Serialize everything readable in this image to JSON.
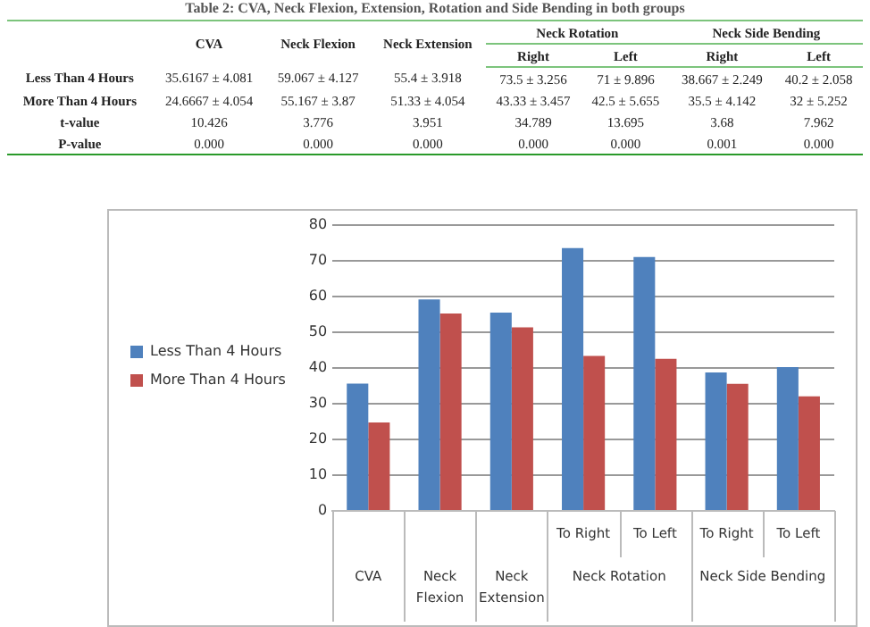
{
  "chart_data": [
    {
      "type": "other",
      "title": "Table 2: CVA, Neck Flexion, Extension, Rotation and Side Bending in both groups",
      "annotations": [
        "CVA",
        "Neck Flexion",
        "Neck Extension",
        "Neck Rotation",
        "Neck Side Bending",
        "Right",
        "Left",
        "Right",
        "Left",
        "Less Than 4 Hours",
        "35.6167 ± 4.081",
        "59.067 ± 4.127",
        "55.4 ± 3.918",
        "73.5 ± 3.256",
        "71 ± 9.896",
        "38.667 ± 2.249",
        "40.2 ± 2.058",
        "More Than 4 Hours",
        "24.6667 ± 4.054",
        "55.167 ± 3.87",
        "51.33 ± 4.054",
        "43.33 ± 3.457",
        "42.5 ± 5.655",
        "35.5 ± 4.142",
        "32 ± 5.252",
        "t-value",
        "10.426",
        "3.776",
        "3.951",
        "34.789",
        "13.695",
        "3.68",
        "7.962",
        "P-value",
        "0.000",
        "0.000",
        "0.000",
        "0.000",
        "0.000",
        "0.001",
        "0.000"
      ]
    },
    {
      "type": "bar",
      "categories": [
        "CVA",
        "Neck Flexion",
        "Neck Extension",
        "To Right",
        "To Left",
        "To Right",
        "To Left"
      ],
      "annotations": [
        "Neck Rotation",
        "Neck Side Bending"
      ],
      "series": [
        {
          "name": "Less Than 4 Hours",
          "color": "#4f81bd",
          "values": [
            35.6,
            59.1,
            55.4,
            73.5,
            71,
            38.7,
            40.2
          ]
        },
        {
          "name": "More Than 4 Hours",
          "color": "#c0504d",
          "values": [
            24.7,
            55.2,
            51.3,
            43.3,
            42.5,
            35.5,
            32
          ]
        }
      ],
      "ylim": [
        0,
        80
      ],
      "yticks": [
        0,
        10,
        20,
        30,
        40,
        50,
        60,
        70,
        80
      ],
      "grid": "y",
      "legend": "left"
    }
  ]
}
